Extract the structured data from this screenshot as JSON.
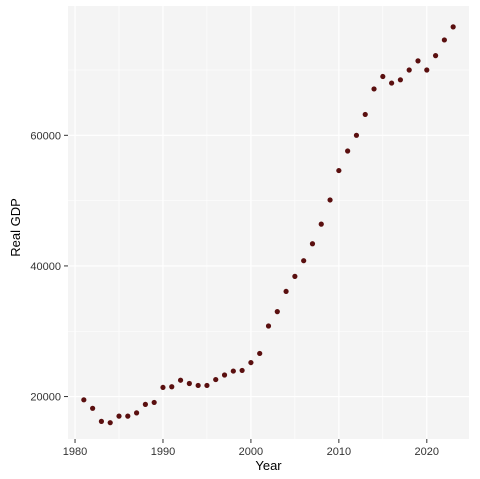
{
  "chart_data": {
    "type": "scatter",
    "xlabel": "Year",
    "ylabel": "Real GDP",
    "xlim": [
      1979.2,
      2024.8
    ],
    "ylim": [
      13500,
      79800
    ],
    "x_ticks": [
      1980,
      1990,
      2000,
      2010,
      2020
    ],
    "y_ticks": [
      20000,
      40000,
      60000
    ],
    "grid": true,
    "point_color": "#5a0f0f",
    "panel_color": "#f4f4f4",
    "series": [
      {
        "x": [
          1981,
          1982,
          1983,
          1984,
          1985,
          1986,
          1987,
          1988,
          1989,
          1990,
          1991,
          1992,
          1993,
          1994,
          1995,
          1996,
          1997,
          1998,
          1999,
          2000,
          2001,
          2002,
          2003,
          2004,
          2005,
          2006,
          2007,
          2008,
          2009,
          2010,
          2011,
          2012,
          2013,
          2014,
          2015,
          2016,
          2017,
          2018,
          2019,
          2020,
          2021,
          2022,
          2023
        ],
        "y": [
          19500,
          18200,
          16200,
          16000,
          17000,
          17000,
          17500,
          18800,
          19100,
          21400,
          21500,
          22500,
          22000,
          21700,
          21700,
          22600,
          23300,
          23900,
          24000,
          25200,
          26600,
          30800,
          33000,
          36100,
          38400,
          40800,
          43400,
          46400,
          50100,
          54600,
          57600,
          60000,
          63200,
          67100,
          69000,
          68000,
          68500,
          70000,
          71400,
          70000,
          72200,
          74600,
          76600
        ]
      }
    ]
  }
}
